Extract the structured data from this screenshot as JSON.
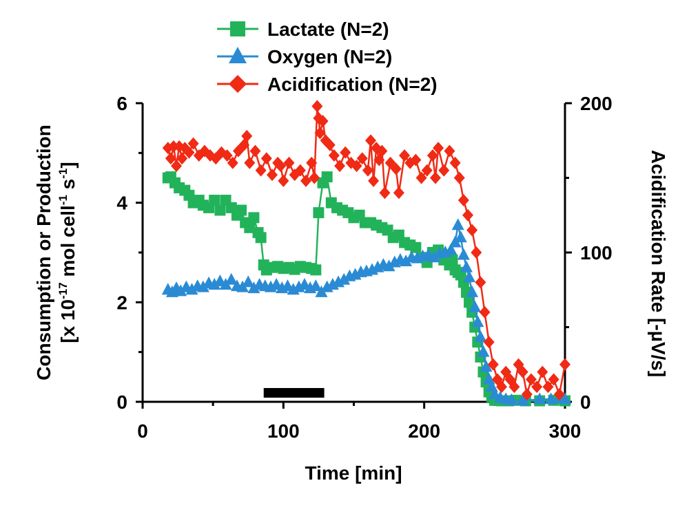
{
  "colors": {
    "lactate": "#22b35a",
    "oxygen": "#2a8bd4",
    "acidification": "#f02a14",
    "axis": "#000000",
    "marker_bar": "#000000"
  },
  "chart_data": {
    "type": "line",
    "xlabel": "Time [min]",
    "ylabel_left_line1": "Consumption or Production",
    "ylabel_left_line2": "[x 10",
    "ylabel_left_exp1": "-17",
    "ylabel_left_mid": " mol cell",
    "ylabel_left_exp2": "-1",
    "ylabel_left_s": " s",
    "ylabel_left_exp3": "-1",
    "ylabel_left_end": "]",
    "ylabel_right": "Acidification Rate [-µV/s]",
    "xlim": [
      0,
      300
    ],
    "ylim_left": [
      0,
      6
    ],
    "ylim_right": [
      0,
      200
    ],
    "x_ticks": [
      0,
      100,
      200,
      300
    ],
    "x_tick_labels": [
      "0",
      "100",
      "200",
      "300"
    ],
    "y_left_ticks": [
      0,
      2,
      4,
      6
    ],
    "y_left_tick_labels": [
      "0",
      "2",
      "4",
      "6"
    ],
    "y_right_ticks": [
      0,
      100,
      200
    ],
    "y_right_tick_labels": [
      "0",
      "100",
      "200"
    ],
    "treatment_bar": {
      "x_start": 86,
      "x_end": 129,
      "y": 0.18
    },
    "series": [
      {
        "name": "Lactate (N=2)",
        "axis": "left",
        "marker": "square",
        "x": [
          18,
          20,
          23,
          26,
          30,
          33,
          36,
          40,
          43,
          47,
          51,
          55,
          59,
          63,
          67,
          70,
          73,
          76,
          79,
          82,
          84,
          86,
          88,
          92,
          96,
          100,
          104,
          108,
          112,
          116,
          120,
          123,
          125,
          128,
          131,
          134,
          138,
          142,
          146,
          150,
          154,
          158,
          162,
          166,
          170,
          174,
          178,
          182,
          186,
          190,
          194,
          198,
          202,
          206,
          210,
          214,
          218,
          220,
          222,
          224,
          226,
          228,
          230,
          232,
          234,
          236,
          238,
          240,
          242,
          244,
          246,
          248,
          250,
          255,
          260,
          265,
          272,
          282,
          292,
          300
        ],
        "values": [
          4.5,
          4.52,
          4.4,
          4.3,
          4.25,
          4.15,
          4.0,
          4.05,
          3.95,
          3.9,
          4.05,
          3.85,
          4.05,
          3.9,
          3.75,
          3.85,
          3.6,
          3.5,
          3.7,
          3.4,
          3.3,
          2.75,
          2.65,
          2.7,
          2.72,
          2.68,
          2.7,
          2.66,
          2.72,
          2.7,
          2.68,
          2.65,
          3.8,
          4.4,
          4.52,
          4.0,
          3.9,
          3.85,
          3.8,
          3.7,
          3.75,
          3.6,
          3.6,
          3.55,
          3.5,
          3.45,
          3.3,
          3.35,
          3.2,
          3.15,
          3.1,
          2.9,
          2.8,
          3.0,
          3.05,
          2.85,
          2.75,
          2.85,
          2.65,
          2.6,
          2.55,
          2.4,
          2.2,
          2.0,
          1.8,
          1.5,
          1.2,
          0.9,
          0.6,
          0.4,
          0.2,
          0.1,
          0.03,
          0.02,
          0.02,
          0.03,
          0.02,
          0.02,
          0.03,
          0.02
        ]
      },
      {
        "name": "Oxygen (N=2)",
        "axis": "left",
        "marker": "triangle",
        "x": [
          18,
          21,
          24,
          27,
          31,
          35,
          39,
          43,
          47,
          51,
          55,
          59,
          63,
          67,
          71,
          75,
          79,
          83,
          87,
          91,
          95,
          99,
          103,
          107,
          111,
          115,
          119,
          123,
          127,
          131,
          135,
          139,
          143,
          147,
          151,
          155,
          159,
          163,
          167,
          171,
          175,
          179,
          183,
          187,
          191,
          195,
          199,
          203,
          207,
          211,
          215,
          219,
          222,
          224,
          226,
          228,
          230,
          232,
          234,
          236,
          238,
          240,
          242,
          244,
          246,
          248,
          250,
          254,
          258,
          262,
          270,
          282,
          290,
          297,
          300
        ],
        "values": [
          2.25,
          2.2,
          2.28,
          2.22,
          2.3,
          2.25,
          2.32,
          2.3,
          2.38,
          2.35,
          2.42,
          2.35,
          2.45,
          2.32,
          2.3,
          2.4,
          2.28,
          2.35,
          2.32,
          2.3,
          2.35,
          2.28,
          2.32,
          2.25,
          2.3,
          2.35,
          2.28,
          2.32,
          2.2,
          2.3,
          2.35,
          2.4,
          2.45,
          2.52,
          2.55,
          2.6,
          2.62,
          2.65,
          2.7,
          2.75,
          2.72,
          2.8,
          2.85,
          2.82,
          2.9,
          2.88,
          2.92,
          2.95,
          2.9,
          2.98,
          3.0,
          3.05,
          3.2,
          3.55,
          3.3,
          2.95,
          2.7,
          2.5,
          2.2,
          1.9,
          1.6,
          1.3,
          1.0,
          0.7,
          0.45,
          0.3,
          0.15,
          0.08,
          0.05,
          0.03,
          0.02,
          0.05,
          0.05,
          0.08,
          0.05
        ]
      },
      {
        "name": "Acidification (N=2)",
        "axis": "right",
        "marker": "diamond",
        "x": [
          18,
          20,
          22,
          24,
          26,
          28,
          30,
          33,
          36,
          40,
          44,
          48,
          52,
          56,
          60,
          64,
          68,
          72,
          74,
          76,
          80,
          84,
          88,
          92,
          96,
          98,
          100,
          104,
          108,
          112,
          116,
          120,
          122,
          124,
          125,
          126,
          128,
          130,
          133,
          136,
          140,
          144,
          148,
          152,
          156,
          160,
          162,
          164,
          166,
          168,
          170,
          172,
          176,
          180,
          182,
          186,
          190,
          194,
          198,
          202,
          206,
          208,
          210,
          214,
          218,
          222,
          225,
          228,
          231,
          234,
          237,
          240,
          243,
          246,
          249,
          252,
          255,
          258,
          261,
          264,
          267,
          270,
          273,
          276,
          280,
          284,
          288,
          292,
          296,
          300
        ],
        "values": [
          170,
          163,
          171,
          158,
          171,
          163,
          170,
          167,
          173,
          165,
          168,
          165,
          163,
          167,
          165,
          160,
          168,
          172,
          178,
          160,
          168,
          155,
          163,
          152,
          160,
          158,
          148,
          160,
          152,
          155,
          148,
          160,
          150,
          198,
          190,
          180,
          188,
          175,
          172,
          165,
          158,
          167,
          160,
          158,
          163,
          155,
          175,
          148,
          170,
          162,
          168,
          140,
          160,
          156,
          140,
          165,
          160,
          162,
          150,
          155,
          165,
          150,
          170,
          155,
          168,
          160,
          150,
          135,
          125,
          115,
          100,
          80,
          60,
          40,
          25,
          15,
          10,
          20,
          15,
          10,
          25,
          20,
          5,
          15,
          10,
          20,
          10,
          15,
          5,
          25
        ]
      }
    ]
  }
}
